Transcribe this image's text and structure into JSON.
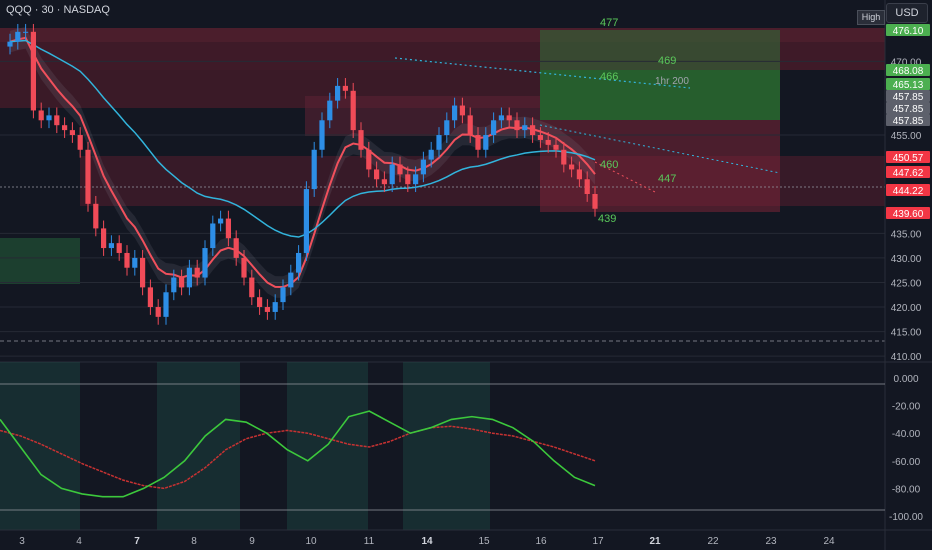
{
  "header": {
    "symbol": "QQQ · 30 · NASDAQ",
    "currency": "USD",
    "high_tag": "High"
  },
  "colors": {
    "background": "#131722",
    "up": "#2d8ee6",
    "down": "#f04b58",
    "ma_fast": "#f0505c",
    "ma_slow": "#32b4dc",
    "level_green": "#5ac85a",
    "oscillator_slow": "#c83232",
    "oscillator_fast": "#3cc83c"
  },
  "chart_data": [
    {
      "type": "candlestick",
      "ylim": [
        408,
        478
      ],
      "y_ticks": [
        410,
        415,
        420,
        425,
        430,
        435,
        455,
        470
      ],
      "x_labels": [
        "3",
        "4",
        "7",
        "8",
        "9",
        "10",
        "11",
        "14",
        "15",
        "16",
        "17",
        "21",
        "22",
        "23",
        "24"
      ],
      "price_tags": [
        {
          "label": "476.10",
          "value": 476.1,
          "color": "#4caf50"
        },
        {
          "label": "468.08",
          "value": 468.08,
          "color": "#4caf50"
        },
        {
          "label": "465.13",
          "value": 465.13,
          "color": "#4caf50"
        },
        {
          "label": "457.85",
          "value": 457.85,
          "color": "#5d606b"
        },
        {
          "label": "457.85",
          "value": 457.85,
          "color": "#5d606b"
        },
        {
          "label": "457.85",
          "value": 457.85,
          "color": "#5d606b"
        },
        {
          "label": "450.57",
          "value": 450.57,
          "color": "#f23645"
        },
        {
          "label": "447.62",
          "value": 447.62,
          "color": "#f23645"
        },
        {
          "label": "444.22",
          "value": 444.22,
          "color": "#f23645"
        },
        {
          "label": "439.60",
          "value": 439.6,
          "color": "#f23645"
        }
      ],
      "level_labels": [
        "477",
        "469",
        "466",
        "1hr 200",
        "460",
        "447",
        "439"
      ],
      "candles_close": [
        474,
        476,
        476,
        460,
        458,
        459,
        457,
        456,
        455,
        452,
        441,
        436,
        432,
        433,
        431,
        428,
        430,
        424,
        420,
        418,
        423,
        426,
        424,
        428,
        426,
        432,
        437,
        438,
        434,
        430,
        426,
        422,
        420,
        419,
        421,
        424,
        427,
        431,
        444,
        452,
        458,
        462,
        465,
        464,
        456,
        452,
        448,
        446,
        445,
        449,
        447,
        445,
        447,
        450,
        452,
        455,
        458,
        461,
        459,
        455,
        452,
        455,
        458,
        459,
        458,
        456,
        457,
        455,
        454,
        453,
        452,
        449,
        448,
        446,
        443,
        440
      ]
    },
    {
      "type": "line",
      "ylim": [
        -100,
        0
      ],
      "y_ticks": [
        "0.000",
        "-20.00",
        "-40.00",
        "-60.00",
        "-80.00",
        "-100.00"
      ],
      "series": [
        {
          "values": [
            -38,
            -42,
            -48,
            -55,
            -62,
            -68,
            -74,
            -78,
            -80,
            -75,
            -65,
            -52,
            -44,
            -40,
            -38,
            -40,
            -44,
            -48,
            -50,
            -46,
            -40,
            -36,
            -35,
            -37,
            -40,
            -42,
            -46,
            -50,
            -55,
            -60
          ]
        },
        {
          "values": [
            -30,
            -50,
            -70,
            -80,
            -84,
            -86,
            -86,
            -80,
            -72,
            -60,
            -42,
            -30,
            -32,
            -40,
            -52,
            -60,
            -48,
            -28,
            -24,
            -32,
            -40,
            -36,
            -30,
            -28,
            -30,
            -36,
            -46,
            -60,
            -72,
            -78
          ]
        }
      ]
    }
  ]
}
